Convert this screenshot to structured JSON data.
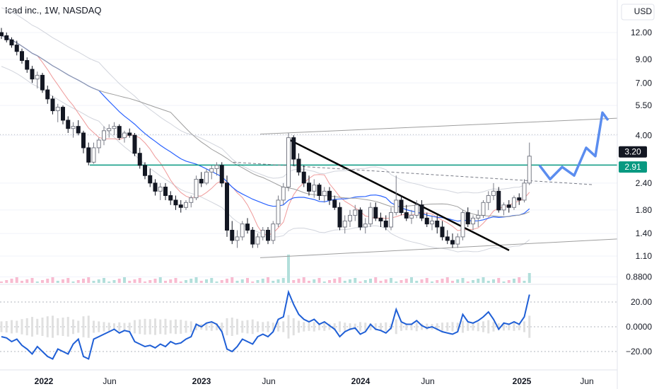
{
  "header": {
    "title": "Icad inc., 1W, NASDAQ",
    "currency_label": "USD"
  },
  "colors": {
    "up": "#26a69a",
    "down": "#131722",
    "accent_green": "#089981",
    "blue_line": "#1f5fd6",
    "projection": "#5b8def",
    "ma_red": "#ef9a9a",
    "ma_gray": "#9e9e9e",
    "ma_blue": "#2962ff",
    "price_tag": "#131722"
  },
  "chart_data": [
    {
      "type": "candlestick",
      "title": "Icad inc., 1W, NASDAQ",
      "y_scale": "log",
      "y_ticks": [
        "12.00",
        "9.00",
        "7.00",
        "5.50",
        "4.00",
        "2.40",
        "1.80",
        "1.40",
        "1.10",
        "0.8800"
      ],
      "y_tick_values": [
        12.0,
        9.0,
        7.0,
        5.5,
        4.0,
        2.4,
        1.8,
        1.4,
        1.1,
        0.88
      ],
      "x_ticks": [
        "2022",
        "Jun",
        "2023",
        "Jun",
        "2024",
        "Jun",
        "2025",
        "Jun"
      ],
      "price_labels": {
        "current": "3.20",
        "support_level": "2.91"
      },
      "horizontal_levels": [
        2.91,
        4.03
      ],
      "series": [
        {
          "values": [
            [
              12.0,
              12.6,
              11.2,
              11.6
            ],
            [
              11.6,
              12.0,
              10.8,
              11.1
            ],
            [
              11.1,
              11.4,
              10.2,
              10.5
            ],
            [
              10.5,
              11.0,
              9.4,
              9.8
            ],
            [
              9.8,
              10.1,
              8.6,
              8.9
            ],
            [
              8.9,
              9.2,
              7.8,
              8.1
            ],
            [
              8.1,
              8.4,
              7.0,
              7.3
            ],
            [
              7.3,
              7.9,
              6.6,
              7.6
            ],
            [
              7.6,
              7.8,
              6.3,
              6.5
            ],
            [
              6.5,
              6.8,
              5.6,
              5.9
            ],
            [
              5.9,
              6.1,
              5.0,
              5.2
            ],
            [
              5.2,
              5.6,
              4.6,
              5.4
            ],
            [
              5.4,
              5.5,
              4.5,
              4.7
            ],
            [
              4.7,
              4.9,
              4.1,
              4.3
            ],
            [
              4.3,
              4.6,
              3.9,
              4.4
            ],
            [
              4.4,
              4.7,
              4.0,
              4.1
            ],
            [
              4.1,
              4.2,
              3.3,
              3.5
            ],
            [
              3.5,
              3.7,
              2.9,
              3.0
            ],
            [
              3.0,
              3.7,
              2.95,
              3.5
            ],
            [
              3.5,
              3.9,
              3.3,
              3.8
            ],
            [
              3.8,
              4.4,
              3.6,
              4.2
            ],
            [
              4.2,
              4.5,
              3.9,
              4.3
            ],
            [
              4.3,
              4.6,
              4.0,
              4.4
            ],
            [
              4.4,
              4.5,
              3.8,
              3.9
            ],
            [
              3.9,
              4.2,
              3.7,
              4.1
            ],
            [
              4.1,
              4.3,
              3.9,
              4.0
            ],
            [
              4.0,
              4.1,
              3.2,
              3.3
            ],
            [
              3.3,
              3.5,
              2.8,
              2.9
            ],
            [
              2.9,
              3.0,
              2.5,
              2.6
            ],
            [
              2.6,
              2.8,
              2.3,
              2.4
            ],
            [
              2.4,
              2.5,
              2.1,
              2.2
            ],
            [
              2.2,
              2.4,
              2.0,
              2.3
            ],
            [
              2.3,
              2.4,
              2.0,
              2.1
            ],
            [
              2.1,
              2.2,
              1.9,
              2.0
            ],
            [
              2.0,
              2.1,
              1.8,
              1.9
            ],
            [
              1.9,
              2.0,
              1.75,
              1.85
            ],
            [
              1.85,
              2.0,
              1.8,
              1.95
            ],
            [
              1.95,
              2.1,
              1.85,
              2.05
            ],
            [
              2.05,
              2.6,
              2.0,
              2.5
            ],
            [
              2.5,
              2.7,
              2.3,
              2.4
            ],
            [
              2.4,
              2.8,
              2.35,
              2.7
            ],
            [
              2.7,
              2.9,
              2.5,
              2.8
            ],
            [
              2.8,
              3.0,
              2.6,
              2.9
            ],
            [
              2.9,
              3.0,
              2.3,
              2.4
            ],
            [
              2.4,
              2.6,
              1.35,
              1.45
            ],
            [
              1.45,
              1.6,
              1.25,
              1.3
            ],
            [
              1.3,
              1.45,
              1.2,
              1.35
            ],
            [
              1.35,
              1.6,
              1.3,
              1.55
            ],
            [
              1.55,
              1.65,
              1.4,
              1.45
            ],
            [
              1.45,
              1.5,
              1.2,
              1.25
            ],
            [
              1.25,
              1.4,
              1.2,
              1.35
            ],
            [
              1.35,
              1.5,
              1.3,
              1.45
            ],
            [
              1.45,
              1.5,
              1.25,
              1.3
            ],
            [
              1.3,
              1.6,
              1.25,
              1.55
            ],
            [
              1.55,
              2.1,
              1.5,
              2.0
            ],
            [
              2.0,
              2.4,
              1.9,
              2.3
            ],
            [
              2.3,
              4.1,
              2.2,
              3.9
            ],
            [
              3.9,
              4.0,
              2.9,
              3.1
            ],
            [
              3.1,
              3.3,
              2.6,
              2.7
            ],
            [
              2.7,
              2.9,
              2.3,
              2.4
            ],
            [
              2.4,
              2.6,
              2.1,
              2.2
            ],
            [
              2.2,
              2.5,
              2.05,
              2.35
            ],
            [
              2.35,
              2.4,
              2.0,
              2.1
            ],
            [
              2.1,
              2.3,
              1.95,
              2.2
            ],
            [
              2.2,
              2.3,
              1.9,
              2.0
            ],
            [
              2.0,
              2.1,
              1.8,
              1.85
            ],
            [
              1.85,
              1.95,
              1.45,
              1.5
            ],
            [
              1.5,
              1.7,
              1.4,
              1.6
            ],
            [
              1.6,
              1.8,
              1.5,
              1.7
            ],
            [
              1.7,
              1.9,
              1.6,
              1.8
            ],
            [
              1.8,
              1.85,
              1.45,
              1.5
            ],
            [
              1.5,
              1.65,
              1.4,
              1.55
            ],
            [
              1.55,
              1.95,
              1.5,
              1.85
            ],
            [
              1.85,
              1.95,
              1.6,
              1.65
            ],
            [
              1.65,
              1.75,
              1.5,
              1.6
            ],
            [
              1.6,
              1.7,
              1.45,
              1.5
            ],
            [
              1.5,
              1.85,
              1.45,
              1.75
            ],
            [
              1.75,
              2.6,
              1.7,
              2.0
            ],
            [
              2.0,
              2.1,
              1.7,
              1.75
            ],
            [
              1.75,
              1.9,
              1.6,
              1.65
            ],
            [
              1.65,
              1.8,
              1.55,
              1.7
            ],
            [
              1.7,
              2.0,
              1.65,
              1.9
            ],
            [
              1.9,
              2.0,
              1.6,
              1.65
            ],
            [
              1.65,
              1.75,
              1.5,
              1.55
            ],
            [
              1.55,
              1.7,
              1.45,
              1.6
            ],
            [
              1.6,
              1.7,
              1.4,
              1.5
            ],
            [
              1.5,
              1.6,
              1.3,
              1.35
            ],
            [
              1.35,
              1.45,
              1.25,
              1.3
            ],
            [
              1.3,
              1.4,
              1.2,
              1.25
            ],
            [
              1.25,
              1.4,
              1.2,
              1.35
            ],
            [
              1.35,
              1.8,
              1.3,
              1.75
            ],
            [
              1.75,
              1.85,
              1.5,
              1.55
            ],
            [
              1.55,
              1.7,
              1.45,
              1.65
            ],
            [
              1.65,
              1.8,
              1.5,
              1.7
            ],
            [
              1.7,
              2.0,
              1.65,
              1.95
            ],
            [
              1.95,
              2.2,
              1.8,
              2.1
            ],
            [
              2.1,
              2.4,
              2.0,
              2.2
            ],
            [
              2.2,
              2.3,
              1.75,
              1.8
            ],
            [
              1.8,
              1.95,
              1.7,
              1.9
            ],
            [
              1.9,
              2.0,
              1.75,
              1.85
            ],
            [
              1.85,
              2.1,
              1.8,
              2.05
            ],
            [
              2.05,
              2.15,
              1.9,
              2.0
            ],
            [
              2.0,
              2.5,
              1.95,
              2.4
            ],
            [
              2.4,
              3.7,
              2.35,
              3.2
            ]
          ]
        }
      ],
      "projection": [
        2.9,
        2.5,
        2.85,
        2.6,
        3.5,
        3.2,
        5.1,
        4.7
      ]
    },
    {
      "type": "line",
      "y_ticks": [
        "20.00",
        "0.0000",
        "−20.00"
      ],
      "y_tick_values": [
        20,
        0,
        -20
      ],
      "series": [
        {
          "values": [
            -8,
            -9,
            -12,
            -10,
            -15,
            -18,
            -22,
            -16,
            -20,
            -24,
            -26,
            -18,
            -20,
            -22,
            -14,
            -10,
            -24,
            -26,
            -10,
            -8,
            -6,
            -4,
            -2,
            -5,
            -3,
            -4,
            -12,
            -14,
            -16,
            -15,
            -17,
            -14,
            -16,
            -12,
            -14,
            -13,
            -10,
            -8,
            2,
            0,
            3,
            4,
            2,
            -4,
            -18,
            -20,
            -16,
            -10,
            -12,
            -14,
            -8,
            -6,
            -8,
            -4,
            6,
            8,
            28,
            18,
            10,
            6,
            4,
            6,
            2,
            4,
            1,
            -2,
            -8,
            -4,
            -2,
            -1,
            -6,
            -4,
            2,
            -2,
            -3,
            -5,
            -1,
            14,
            4,
            2,
            2,
            5,
            1,
            -1,
            0,
            -2,
            -4,
            -5,
            -6,
            -4,
            10,
            4,
            3,
            5,
            8,
            12,
            6,
            -2,
            3,
            2,
            4,
            2,
            8,
            26
          ]
        }
      ]
    }
  ]
}
